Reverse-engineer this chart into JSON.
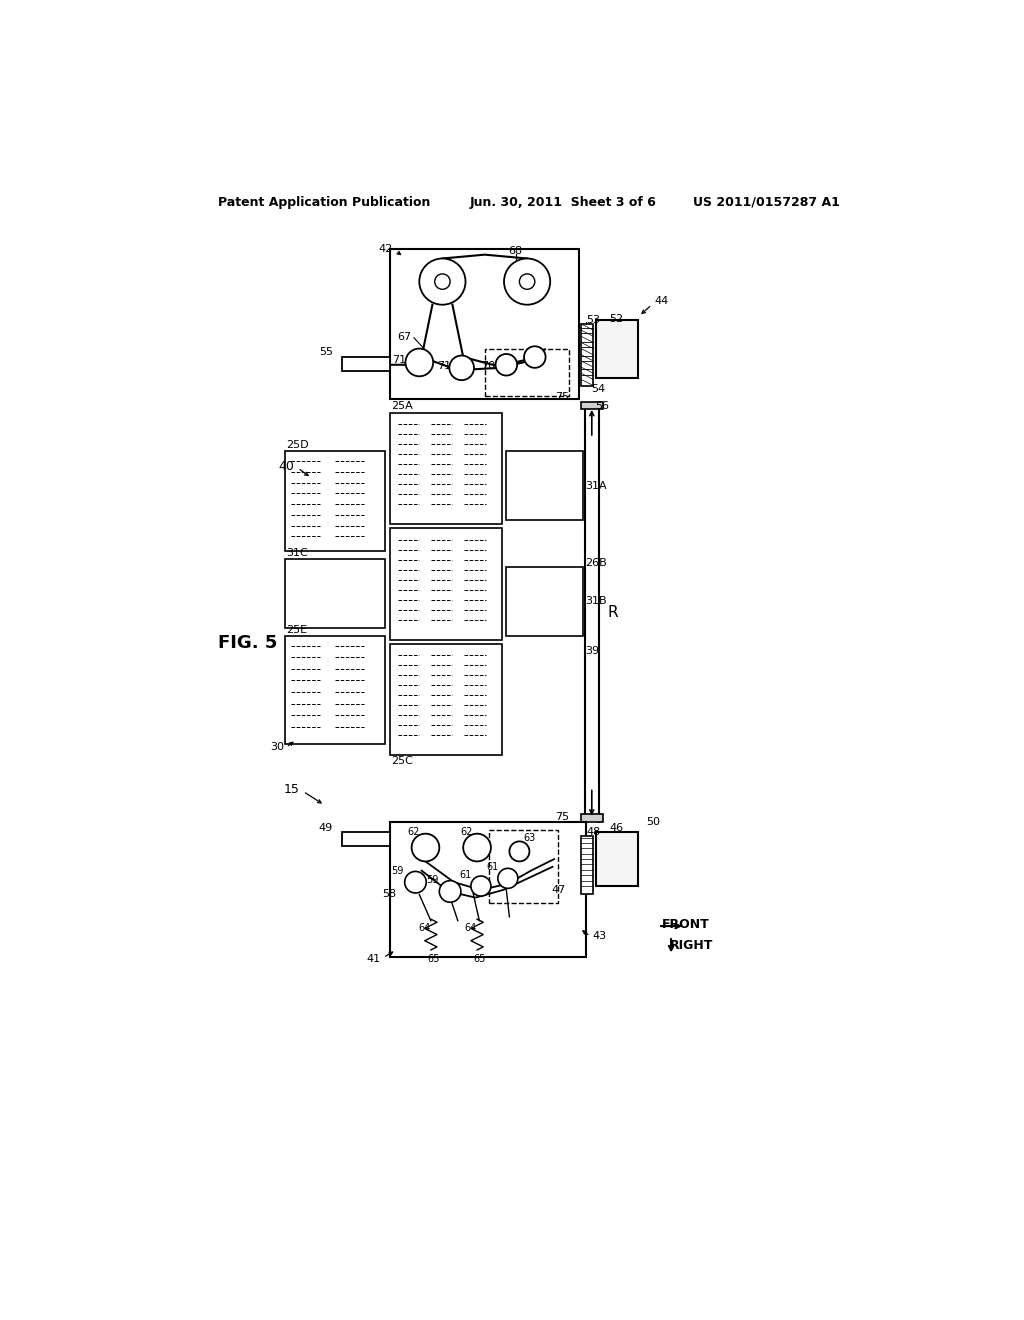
{
  "bg_color": "#ffffff",
  "header_left": "Patent Application Publication",
  "header_center": "Jun. 30, 2011  Sheet 3 of 6",
  "header_right": "US 2011/0157287 A1"
}
